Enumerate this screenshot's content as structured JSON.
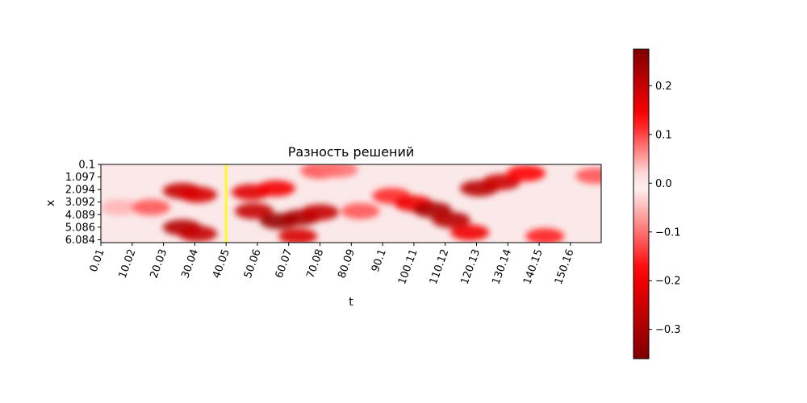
{
  "chart_data": {
    "type": "heatmap",
    "title": "Разность решений",
    "xlabel": "t",
    "ylabel": "x",
    "x_tick_labels": [
      "0.01",
      "10.02",
      "20.03",
      "30.04",
      "40.05",
      "50.06",
      "60.07",
      "70.08",
      "80.09",
      "90.1",
      "100.11",
      "110.12",
      "120.13",
      "130.14",
      "140.15",
      "150.16"
    ],
    "y_tick_labels": [
      "0.1",
      "1.097",
      "2.094",
      "3.092",
      "4.089",
      "5.086",
      "6.084"
    ],
    "x_range": [
      0.01,
      160
    ],
    "y_range": [
      0.1,
      6.3
    ],
    "colormap": "seismic",
    "colorbar": {
      "range": [
        -0.36,
        0.275
      ],
      "tick_labels": [
        "0.2",
        "0.1",
        "0.0",
        "−0.1",
        "−0.2",
        "−0.3"
      ],
      "tick_values": [
        0.2,
        0.1,
        0.0,
        -0.1,
        -0.2,
        -0.3
      ]
    },
    "marker_line": {
      "t": 40.05,
      "color": "#ffff00"
    },
    "features": [
      {
        "t": 26,
        "x": 2.2,
        "value": 0.2
      },
      {
        "t": 31,
        "x": 2.5,
        "value": 0.18
      },
      {
        "t": 26,
        "x": 5.1,
        "value": 0.22
      },
      {
        "t": 31,
        "x": 5.6,
        "value": 0.2
      },
      {
        "t": 48,
        "x": 2.3,
        "value": 0.17
      },
      {
        "t": 56,
        "x": 2.0,
        "value": 0.15
      },
      {
        "t": 49,
        "x": 3.8,
        "value": 0.2
      },
      {
        "t": 57,
        "x": 4.6,
        "value": 0.25
      },
      {
        "t": 64,
        "x": 4.3,
        "value": 0.23
      },
      {
        "t": 70,
        "x": 3.9,
        "value": 0.2
      },
      {
        "t": 63,
        "x": 5.8,
        "value": 0.18
      },
      {
        "t": 83,
        "x": 3.8,
        "value": -0.12
      },
      {
        "t": 93,
        "x": 2.6,
        "value": -0.15
      },
      {
        "t": 100,
        "x": 3.2,
        "value": -0.2
      },
      {
        "t": 106,
        "x": 3.7,
        "value": -0.3
      },
      {
        "t": 112,
        "x": 4.5,
        "value": -0.28
      },
      {
        "t": 118,
        "x": 5.5,
        "value": -0.2
      },
      {
        "t": 121,
        "x": 2.0,
        "value": -0.28
      },
      {
        "t": 128,
        "x": 1.5,
        "value": -0.25
      },
      {
        "t": 136,
        "x": 0.8,
        "value": -0.18
      },
      {
        "t": 70,
        "x": 0.6,
        "value": -0.12
      },
      {
        "t": 76,
        "x": 0.5,
        "value": -0.1
      },
      {
        "t": 158,
        "x": 1.0,
        "value": -0.12
      },
      {
        "t": 142,
        "x": 5.8,
        "value": 0.12
      },
      {
        "t": 6,
        "x": 3.5,
        "value": 0.04
      },
      {
        "t": 16,
        "x": 3.5,
        "value": 0.09
      }
    ]
  }
}
